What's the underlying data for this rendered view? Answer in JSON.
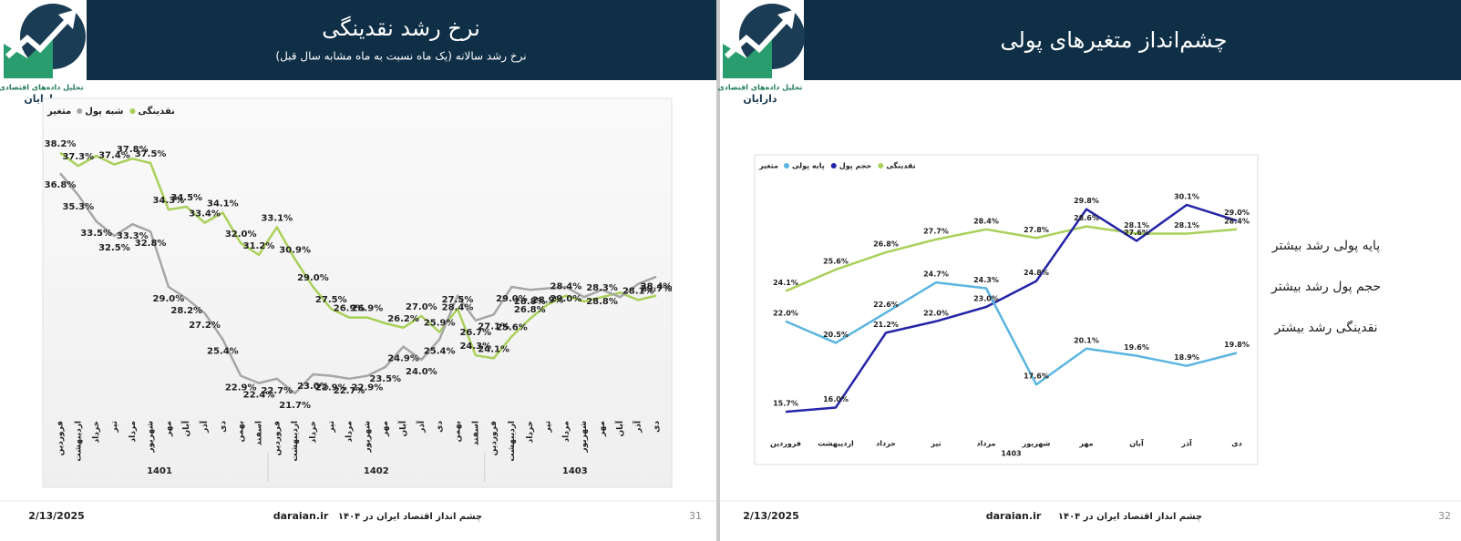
{
  "slides": [
    {
      "logo": {
        "line1": "تحلیل داده‌های اقتصادی",
        "line2": "دارایان"
      },
      "title": "نرخ رشد نقدینگی",
      "subtitle": "نرخ رشد سالانه (یک ماه نسبت به ماه مشابه سال قبل)",
      "footer": {
        "date": "2/13/2025",
        "site": "daraian.ir",
        "text": "چشم انداز اقتصاد ایران  در ۱۴۰۴",
        "page": 31
      }
    },
    {
      "logo": {
        "line1": "تحلیل داده‌های اقتصادی",
        "line2": "دارایان"
      },
      "title": "چشم‌انداز متغیرهای پولی",
      "notes": [
        "پایه پولی رشد بیشتر",
        "حجم پول رشد بیشتر",
        "نقدینگی رشد بیشتر"
      ],
      "footer": {
        "date": "2/13/2025",
        "site": "daraian.ir",
        "text": "چشم انداز اقتصاد ایران  در ۱۴۰۴",
        "page": 32
      }
    }
  ],
  "chart_data": [
    {
      "type": "line",
      "legend_title": "متغیر",
      "ylim": [
        20,
        40
      ],
      "groups": [
        {
          "name": "1401",
          "categories": [
            "فروردین",
            "اردیبهشت",
            "خرداد",
            "تیر",
            "مرداد",
            "شهریور",
            "مهر",
            "آبان",
            "آذر",
            "دی",
            "بهمن",
            "اسفند"
          ]
        },
        {
          "name": "1402",
          "categories": [
            "فروردین",
            "اردیبهشت",
            "خرداد",
            "تیر",
            "مرداد",
            "شهریور",
            "مهر",
            "آبان",
            "آذر",
            "دی",
            "بهمن",
            "اسفند"
          ]
        },
        {
          "name": "1403",
          "categories": [
            "فروردین",
            "اردیبهشت",
            "خرداد",
            "تیر",
            "مرداد",
            "شهریور",
            "مهر",
            "آبان",
            "آذر",
            "دی"
          ]
        }
      ],
      "series": [
        {
          "name": "نقدینگی",
          "color": "#a9d05a",
          "values": [
            38.2,
            37.3,
            38.0,
            37.4,
            37.8,
            37.5,
            34.3,
            34.5,
            33.4,
            34.1,
            32.0,
            31.2,
            33.1,
            30.9,
            29.0,
            27.5,
            26.9,
            26.9,
            26.5,
            26.2,
            27.0,
            25.9,
            27.5,
            24.3,
            24.1,
            25.6,
            26.8,
            27.8,
            28.4,
            28.0,
            28.3,
            28.6,
            28.1,
            28.4
          ],
          "value_labels": [
            "38.2%",
            "37.3%",
            null,
            "37.4%",
            "37.8%",
            "37.5%",
            "34.3%",
            "34.5%",
            "33.4%",
            "34.1%",
            "32.0%",
            "31.2%",
            "33.1%",
            "30.9%",
            "29.0%",
            "27.5%",
            "26.9%",
            "26.9%",
            null,
            "26.2%",
            "27.0%",
            "25.9%",
            "27.5%",
            "24.3%",
            "24.1%",
            "25.6%",
            "26.8%",
            null,
            "28.4%",
            null,
            "28.3%",
            null,
            "28.1%",
            "28.4%"
          ]
        },
        {
          "name": "شبه پول",
          "color": "#a6a6a6",
          "values": [
            36.8,
            35.3,
            33.5,
            32.5,
            33.3,
            32.8,
            29.0,
            28.2,
            27.2,
            25.4,
            22.9,
            22.4,
            22.7,
            21.7,
            23.0,
            22.9,
            22.7,
            22.9,
            23.5,
            24.9,
            24.0,
            25.4,
            28.4,
            26.7,
            27.1,
            29.0,
            28.8,
            28.9,
            29.0,
            28.3,
            28.8,
            28.3,
            29.2,
            29.7
          ],
          "value_labels": [
            "36.8%",
            "35.3%",
            "33.5%",
            "32.5%",
            "33.3%",
            "32.8%",
            "29.0%",
            "28.2%",
            "27.2%",
            "25.4%",
            "22.9%",
            "22.4%",
            "22.7%",
            "21.7%",
            "23.0%",
            "22.9%",
            "22.7%",
            "22.9%",
            "23.5%",
            "24.9%",
            "24.0%",
            "25.4%",
            "28.4%",
            "26.7%",
            "27.1%",
            "29.0%",
            "28.8%",
            "28.9%",
            "29.0%",
            null,
            "28.8%",
            null,
            null,
            "29.7%"
          ]
        }
      ]
    },
    {
      "type": "line",
      "legend_title": "متغیر",
      "ylim": [
        14,
        32
      ],
      "x_group_label": "1403",
      "categories": [
        "فروردین",
        "اردیبهشت",
        "خرداد",
        "تیر",
        "مرداد",
        "شهریور",
        "مهر",
        "آبان",
        "آذر",
        "دی"
      ],
      "series": [
        {
          "name": "نقدینگی",
          "color": "#a9d05a",
          "values": [
            24.1,
            25.6,
            26.8,
            27.7,
            28.4,
            27.8,
            28.6,
            28.1,
            28.1,
            28.4
          ],
          "value_labels": [
            "24.1%",
            "25.6%",
            "26.8%",
            "27.7%",
            "28.4%",
            "27.8%",
            "28.6%",
            "28.1%",
            "28.1%",
            "28.4%"
          ]
        },
        {
          "name": "حجم پول",
          "color": "#2424a8",
          "values": [
            15.7,
            16.0,
            21.2,
            22.0,
            23.0,
            24.8,
            29.8,
            27.6,
            30.1,
            29.0
          ],
          "value_labels": [
            "15.7%",
            "16.0%",
            "21.2%",
            "22.0%",
            "23.0%",
            "24.8%",
            "29.8%",
            "27.6%",
            "30.1%",
            "29.0%"
          ]
        },
        {
          "name": "پایه پولی",
          "color": "#5bb5e0",
          "values": [
            22.0,
            20.5,
            22.6,
            24.7,
            24.3,
            17.6,
            20.1,
            19.6,
            18.9,
            19.8
          ],
          "value_labels": [
            "22.0%",
            "20.5%",
            "22.6%",
            "24.7%",
            "24.3%",
            "17.6%",
            "20.1%",
            "19.6%",
            "18.9%",
            "19.8%"
          ]
        }
      ]
    }
  ]
}
